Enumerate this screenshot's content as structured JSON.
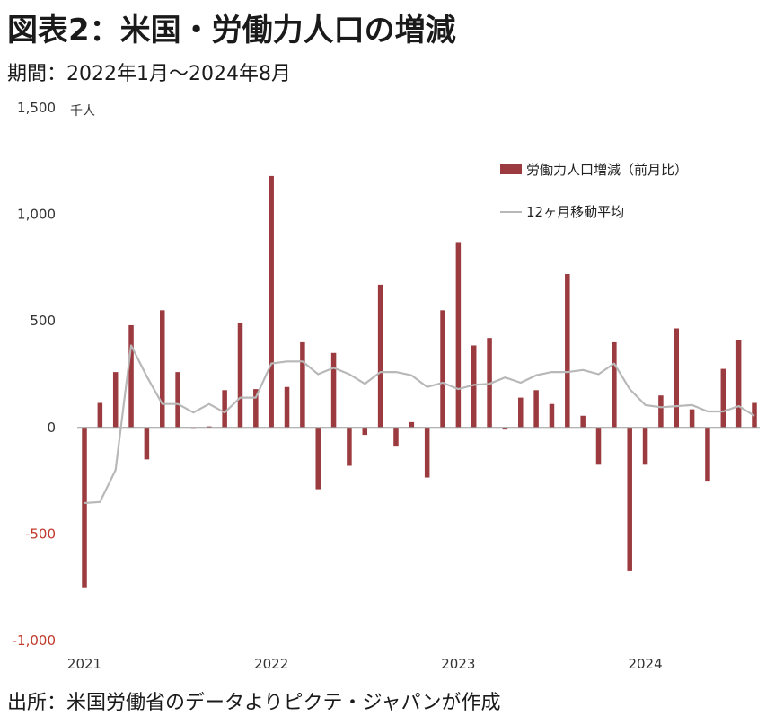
{
  "title": "図表2：米国・労働力人口の増減",
  "subtitle": "期間：2022年1月～2024年8月",
  "source": "出所：米国労働省のデータよりピクテ・ジャパンが作成",
  "colors": {
    "bar": "#9b3a3f",
    "line": "#b8b8b8",
    "negative_tick": "#c0392b"
  },
  "chart_data": {
    "type": "bar",
    "unit_label": "千人",
    "ylim": [
      -1000,
      1500
    ],
    "yticks": [
      {
        "value": 1500,
        "label": "1,500"
      },
      {
        "value": 1000,
        "label": "1,000"
      },
      {
        "value": 500,
        "label": "500"
      },
      {
        "value": 0,
        "label": "0"
      },
      {
        "value": -500,
        "label": "-500"
      },
      {
        "value": -1000,
        "label": "-1,000"
      }
    ],
    "xticks": [
      {
        "index": 0,
        "label": "2021"
      },
      {
        "index": 12,
        "label": "2022"
      },
      {
        "index": 24,
        "label": "2023"
      },
      {
        "index": 36,
        "label": "2024"
      }
    ],
    "legend": [
      "労働力人口増減（前月比）",
      "12ヶ月移動平均"
    ],
    "series": [
      {
        "name": "労働力人口増減（前月比）",
        "type": "bar",
        "values": [
          -750,
          115,
          260,
          480,
          -150,
          550,
          260,
          0,
          5,
          175,
          490,
          180,
          1180,
          190,
          400,
          -290,
          350,
          -180,
          -35,
          670,
          -90,
          25,
          -235,
          550,
          870,
          385,
          420,
          -10,
          140,
          175,
          110,
          720,
          55,
          -175,
          400,
          -675,
          -175,
          150,
          465,
          85,
          -250,
          275,
          410,
          115
        ]
      },
      {
        "name": "12ヶ月移動平均",
        "type": "line",
        "values": [
          -355,
          -350,
          -200,
          385,
          240,
          110,
          110,
          70,
          110,
          70,
          140,
          140,
          300,
          310,
          310,
          250,
          280,
          250,
          205,
          260,
          260,
          245,
          190,
          210,
          180,
          200,
          205,
          235,
          210,
          245,
          260,
          260,
          270,
          250,
          300,
          180,
          105,
          95,
          100,
          105,
          75,
          75,
          100,
          55
        ]
      }
    ]
  }
}
